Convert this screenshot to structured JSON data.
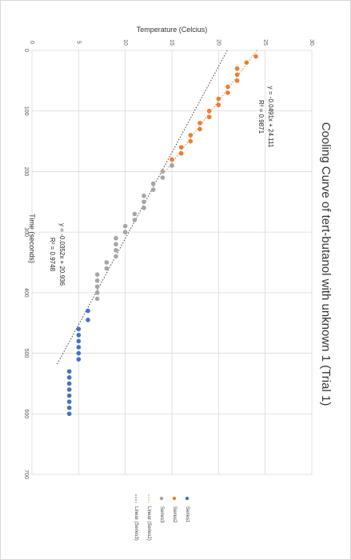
{
  "chart_data": {
    "type": "scatter",
    "title": "Cooling Curve of tert-butanol with unknown 1 (Trial 1)",
    "xlabel": "Time (seconds)",
    "ylabel": "Temperature (Celcius)",
    "xlim": [
      0,
      700
    ],
    "ylim": [
      0,
      30
    ],
    "x_ticks": [
      "0",
      "100",
      "200",
      "300",
      "400",
      "500",
      "600",
      "700"
    ],
    "y_ticks": [
      "0",
      "5",
      "10",
      "15",
      "20",
      "25",
      "30"
    ],
    "grid": true,
    "legend_position": "bottom",
    "series": [
      {
        "name": "Series1",
        "color": "#4472c4",
        "x": [
          430,
          445,
          460,
          470,
          480,
          490,
          500,
          510,
          530,
          540,
          550,
          560,
          570,
          580,
          590,
          600
        ],
        "y": [
          6,
          6,
          5,
          5,
          5,
          5,
          5,
          5,
          4,
          4,
          4,
          4,
          4,
          4,
          4,
          4
        ]
      },
      {
        "name": "Series2",
        "color": "#ed7d31",
        "x": [
          10,
          20,
          30,
          40,
          50,
          60,
          70,
          80,
          90,
          100,
          110,
          120,
          130,
          140,
          150,
          160,
          170,
          180,
          190
        ],
        "y": [
          24,
          23,
          22,
          22,
          22,
          21,
          21,
          20,
          20,
          19,
          19,
          18,
          18,
          17,
          17,
          16,
          16,
          15,
          15
        ]
      },
      {
        "name": "Series3",
        "color": "#a5a5a5",
        "x": [
          190,
          200,
          210,
          220,
          230,
          240,
          250,
          260,
          270,
          280,
          290,
          300,
          310,
          320,
          330,
          340,
          350,
          360,
          370,
          380,
          390,
          400,
          410
        ],
        "y": [
          15,
          14,
          14,
          13,
          13,
          12,
          12,
          12,
          11,
          11,
          10,
          10,
          9,
          9,
          9,
          9,
          8,
          8,
          7,
          7,
          7,
          7,
          7
        ]
      }
    ],
    "trendlines": [
      {
        "name": "Linear (Series2)",
        "color": "#ed7d31",
        "slope": -0.0491,
        "intercept": 24.111,
        "x_range": [
          0,
          200
        ],
        "equation": "y = -0.0491x + 24.111",
        "r2": "R² = 0.9871"
      },
      {
        "name": "Linear (Series3)",
        "color": "#404040",
        "slope": -0.0352,
        "intercept": 20.936,
        "x_range": [
          0,
          520
        ],
        "equation": "y = -0.0352x + 20.936",
        "r2": "R² = 0.9748"
      }
    ]
  }
}
